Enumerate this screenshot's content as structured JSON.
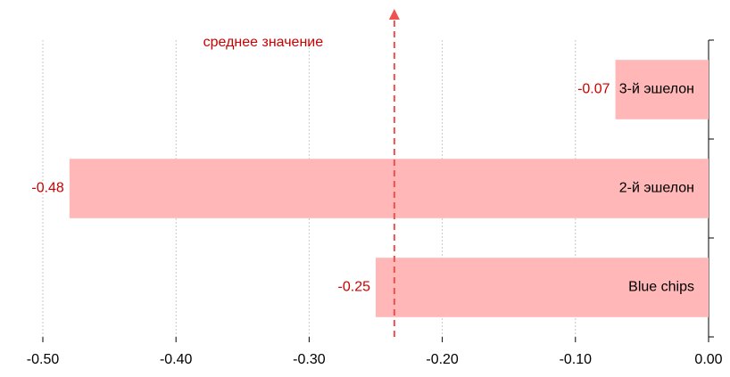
{
  "chart_data": {
    "type": "hbar",
    "categories": [
      "3-й эшелон",
      "2-й эшелон",
      "Blue chips"
    ],
    "values": [
      -0.07,
      -0.48,
      -0.25
    ],
    "color": "#ffb7b7",
    "label_color": "#cc0000",
    "xlim": [
      -0.5,
      0
    ],
    "xticks": [
      {
        "value": -0.5,
        "label": "-0.50"
      },
      {
        "value": -0.4,
        "label": "-0.40"
      },
      {
        "value": -0.3,
        "label": "-0.30"
      },
      {
        "value": -0.2,
        "label": "-0.20"
      },
      {
        "value": -0.1,
        "label": "-0.10"
      },
      {
        "value": 0,
        "label": "0.00"
      }
    ],
    "grid": true,
    "mean_line": {
      "value": -0.236,
      "label": "среднее значение",
      "color": "#f05050"
    }
  }
}
